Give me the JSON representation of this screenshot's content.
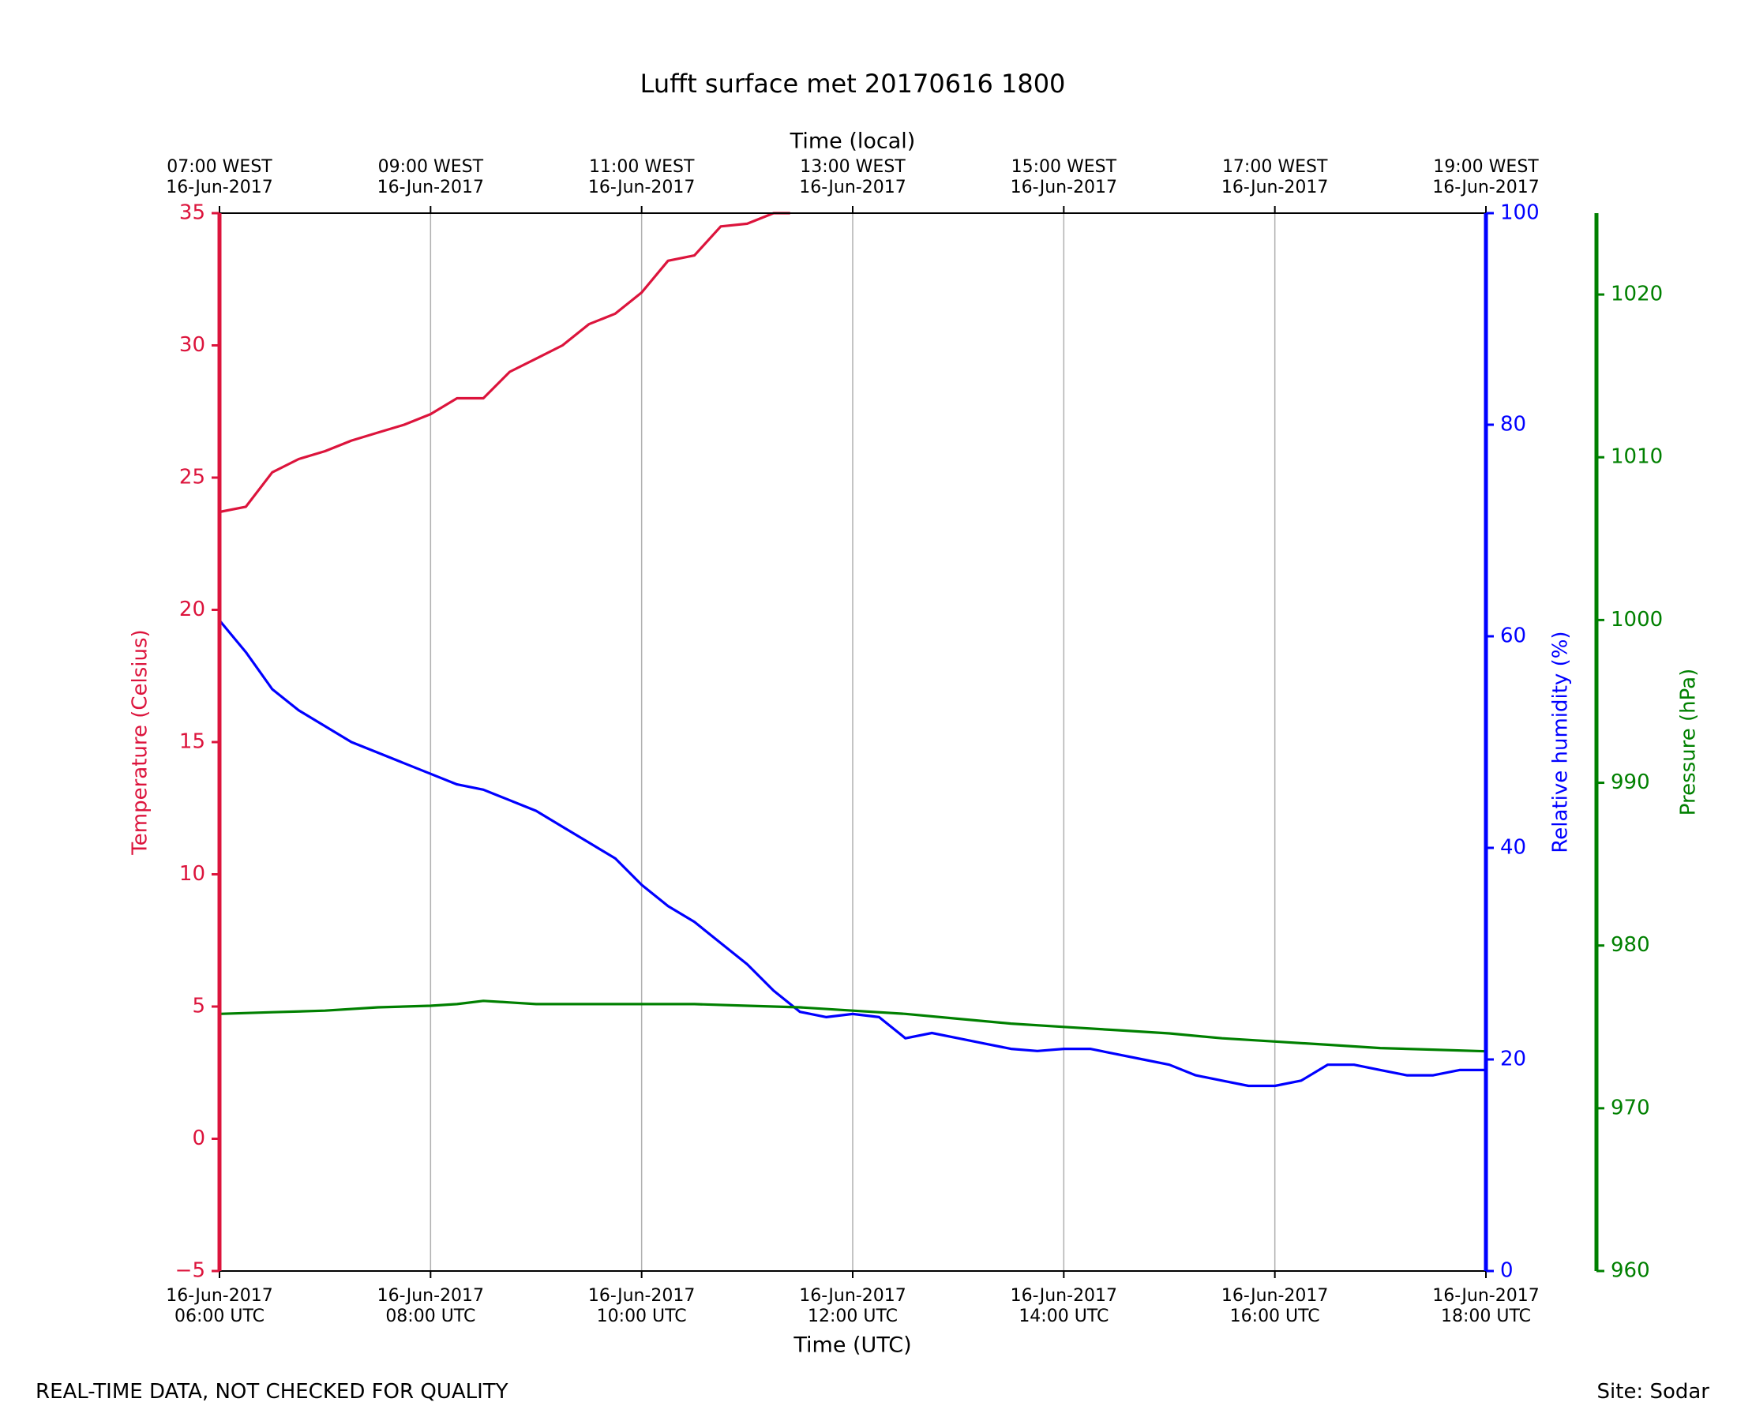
{
  "footer": {
    "disclaimer": "REAL-TIME DATA, NOT CHECKED FOR QUALITY",
    "site": "Site: Sodar"
  },
  "colors": {
    "temperature": "#dc143c",
    "humidity": "#0000ff",
    "pressure": "#008000",
    "grid": "#b0b0b0",
    "axis": "#000000"
  },
  "chart_data": {
    "type": "line",
    "title": "Lufft surface met 20170616 1800",
    "xlabel": "Time (UTC)",
    "xlabel_top": "Time (local)",
    "x_unit": "hours UTC on 16-Jun-2017",
    "xlim": [
      6,
      18
    ],
    "grid": "vertical at major x ticks",
    "x_ticks": [
      {
        "value": 6,
        "label": [
          "16-Jun-2017",
          "06:00 UTC"
        ],
        "top_label": [
          "07:00 WEST",
          "16-Jun-2017"
        ]
      },
      {
        "value": 8,
        "label": [
          "16-Jun-2017",
          "08:00 UTC"
        ],
        "top_label": [
          "09:00 WEST",
          "16-Jun-2017"
        ]
      },
      {
        "value": 10,
        "label": [
          "16-Jun-2017",
          "10:00 UTC"
        ],
        "top_label": [
          "11:00 WEST",
          "16-Jun-2017"
        ]
      },
      {
        "value": 12,
        "label": [
          "16-Jun-2017",
          "12:00 UTC"
        ],
        "top_label": [
          "13:00 WEST",
          "16-Jun-2017"
        ]
      },
      {
        "value": 14,
        "label": [
          "16-Jun-2017",
          "14:00 UTC"
        ],
        "top_label": [
          "15:00 WEST",
          "16-Jun-2017"
        ]
      },
      {
        "value": 16,
        "label": [
          "16-Jun-2017",
          "16:00 UTC"
        ],
        "top_label": [
          "17:00 WEST",
          "16-Jun-2017"
        ]
      },
      {
        "value": 18,
        "label": [
          "16-Jun-2017",
          "18:00 UTC"
        ],
        "top_label": [
          "19:00 WEST",
          "16-Jun-2017"
        ]
      }
    ],
    "axes": [
      {
        "id": "temperature",
        "label": "Temperature (Celsius)",
        "side": "left",
        "ylim": [
          -5,
          35
        ],
        "ticks": [
          -5,
          0,
          5,
          10,
          15,
          20,
          25,
          30,
          35
        ],
        "tick_labels": [
          "−5",
          "0",
          "5",
          "10",
          "15",
          "20",
          "25",
          "30",
          "35"
        ]
      },
      {
        "id": "humidity",
        "label": "Relative humidity (%)",
        "side": "right",
        "ylim": [
          0,
          100
        ],
        "ticks": [
          0,
          20,
          40,
          60,
          80,
          100
        ],
        "tick_labels": [
          "0",
          "20",
          "40",
          "60",
          "80",
          "100"
        ]
      },
      {
        "id": "pressure",
        "label": "Pressure (hPa)",
        "side": "right-outer",
        "ylim": [
          960,
          1025
        ],
        "ticks": [
          960,
          970,
          980,
          990,
          1000,
          1010,
          1020
        ],
        "tick_labels": [
          "960",
          "970",
          "980",
          "990",
          "1000",
          "1010",
          "1020"
        ]
      }
    ],
    "series": [
      {
        "name": "Temperature",
        "axis": "temperature",
        "x": [
          6.0,
          6.25,
          6.5,
          6.75,
          7.0,
          7.25,
          7.5,
          7.75,
          8.0,
          8.25,
          8.5,
          8.75,
          9.0,
          9.25,
          9.5,
          9.75,
          10.0,
          10.25,
          10.5,
          10.75,
          11.0,
          11.25,
          11.4
        ],
        "values": [
          23.7,
          23.9,
          25.2,
          25.7,
          26.0,
          26.4,
          26.7,
          27.0,
          27.4,
          28.0,
          28.0,
          29.0,
          29.5,
          30.0,
          30.8,
          31.2,
          32.0,
          33.2,
          33.4,
          34.5,
          34.6,
          35.0,
          35.0
        ]
      },
      {
        "name": "Relative humidity",
        "axis": "humidity",
        "x": [
          6.0,
          6.25,
          6.5,
          6.75,
          7.0,
          7.25,
          7.5,
          7.75,
          8.0,
          8.25,
          8.5,
          8.75,
          9.0,
          9.25,
          9.5,
          9.75,
          10.0,
          10.25,
          10.5,
          10.75,
          11.0,
          11.25,
          11.5,
          11.75,
          12.0,
          12.25,
          12.5,
          12.75,
          13.0,
          13.25,
          13.5,
          13.75,
          14.0,
          14.25,
          14.5,
          14.75,
          15.0,
          15.25,
          15.5,
          15.75,
          16.0,
          16.25,
          16.5,
          16.75,
          17.0,
          17.25,
          17.5,
          17.75,
          18.0
        ],
        "values": [
          61.5,
          58.5,
          55.0,
          53.0,
          51.5,
          50.0,
          49.0,
          48.0,
          47.0,
          46.0,
          45.5,
          44.5,
          43.5,
          42.0,
          40.5,
          39.0,
          36.5,
          34.5,
          33.0,
          31.0,
          29.0,
          26.5,
          24.5,
          24.0,
          24.3,
          24.0,
          22.0,
          22.5,
          22.0,
          21.5,
          21.0,
          20.8,
          21.0,
          21.0,
          20.5,
          20.0,
          19.5,
          18.5,
          18.0,
          17.5,
          17.5,
          18.0,
          19.5,
          19.5,
          19.0,
          18.5,
          18.5,
          19.0,
          19.0
        ]
      },
      {
        "name": "Pressure",
        "axis": "pressure",
        "x": [
          6.0,
          6.5,
          7.0,
          7.5,
          8.0,
          8.25,
          8.5,
          8.75,
          9.0,
          9.5,
          10.0,
          10.5,
          11.0,
          11.5,
          12.0,
          12.5,
          13.0,
          13.5,
          14.0,
          14.5,
          15.0,
          15.5,
          16.0,
          16.5,
          17.0,
          17.5,
          18.0
        ],
        "values": [
          975.8,
          975.9,
          976.0,
          976.2,
          976.3,
          976.4,
          976.6,
          976.5,
          976.4,
          976.4,
          976.4,
          976.4,
          976.3,
          976.2,
          976.0,
          975.8,
          975.5,
          975.2,
          975.0,
          974.8,
          974.6,
          974.3,
          974.1,
          973.9,
          973.7,
          973.6,
          973.5
        ]
      }
    ]
  }
}
